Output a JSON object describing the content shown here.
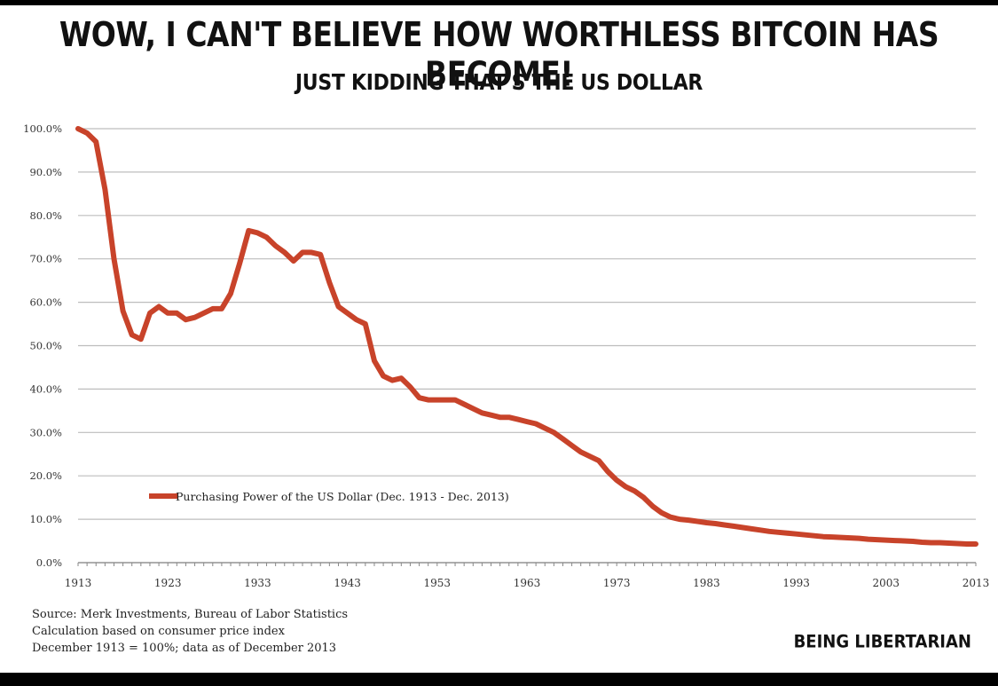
{
  "header": {
    "title": "WOW, I CAN'T BELIEVE HOW WORTHLESS BITCOIN HAS BECOME!",
    "subtitle": "JUST KIDDING THAT'S THE US DOLLAR"
  },
  "footer": {
    "source_lines": [
      "Source: Merk Investments, Bureau of Labor Statistics",
      "Calculation based on consumer price index",
      "December 1913 = 100%; data as of December 2013"
    ],
    "brand": "BEING LIBERTARIAN"
  },
  "colors": {
    "line": "#c8432a",
    "grid": "#bdbdbd",
    "axis_text": "#333333"
  },
  "chart_data": {
    "type": "line",
    "title": "",
    "xlabel": "",
    "ylabel": "",
    "grid": true,
    "legend_position": "lower-left",
    "xlim": [
      1913,
      2013
    ],
    "ylim": [
      0,
      100
    ],
    "x_ticks": [
      1913,
      1923,
      1933,
      1943,
      1953,
      1963,
      1973,
      1983,
      1993,
      2003,
      2013
    ],
    "y_ticks": [
      "0.0%",
      "10.0%",
      "20.0%",
      "30.0%",
      "40.0%",
      "50.0%",
      "60.0%",
      "70.0%",
      "80.0%",
      "90.0%",
      "100.0%"
    ],
    "series": [
      {
        "name": "Purchasing Power of the US Dollar (Dec. 1913 - Dec. 2013)",
        "x": [
          1913,
          1914,
          1915,
          1916,
          1917,
          1918,
          1919,
          1920,
          1921,
          1922,
          1923,
          1924,
          1925,
          1926,
          1927,
          1928,
          1929,
          1930,
          1931,
          1932,
          1933,
          1934,
          1935,
          1936,
          1937,
          1938,
          1939,
          1940,
          1941,
          1942,
          1943,
          1944,
          1945,
          1946,
          1947,
          1948,
          1949,
          1950,
          1951,
          1952,
          1953,
          1954,
          1955,
          1956,
          1957,
          1958,
          1959,
          1960,
          1961,
          1962,
          1963,
          1964,
          1965,
          1966,
          1967,
          1968,
          1969,
          1970,
          1971,
          1972,
          1973,
          1974,
          1975,
          1976,
          1977,
          1978,
          1979,
          1980,
          1981,
          1982,
          1983,
          1984,
          1985,
          1986,
          1987,
          1988,
          1989,
          1990,
          1991,
          1992,
          1993,
          1994,
          1995,
          1996,
          1997,
          1998,
          1999,
          2000,
          2001,
          2002,
          2003,
          2004,
          2005,
          2006,
          2007,
          2008,
          2009,
          2010,
          2011,
          2012,
          2013
        ],
        "values": [
          100,
          99,
          97,
          86,
          70,
          58,
          52.5,
          51.5,
          57.5,
          59,
          57.5,
          57.5,
          56,
          56.5,
          57.5,
          58.5,
          58.5,
          62,
          69,
          76.5,
          76,
          75,
          73,
          71.5,
          69.5,
          71.5,
          71.5,
          71,
          64.5,
          59,
          57.5,
          56,
          55,
          46.5,
          43,
          42,
          42.5,
          40.5,
          38,
          37.5,
          37.5,
          37.5,
          37.5,
          36.5,
          35.5,
          34.5,
          34,
          33.5,
          33.5,
          33,
          32.5,
          32,
          31,
          30,
          28.5,
          27,
          25.5,
          24.5,
          23.5,
          21,
          19,
          17.5,
          16.5,
          15,
          13,
          11.5,
          10.5,
          10,
          9.8,
          9.5,
          9.2,
          9,
          8.7,
          8.4,
          8.1,
          7.8,
          7.5,
          7.2,
          7.0,
          6.8,
          6.6,
          6.4,
          6.2,
          6.0,
          5.9,
          5.8,
          5.7,
          5.6,
          5.4,
          5.3,
          5.2,
          5.1,
          5.0,
          4.9,
          4.7,
          4.6,
          4.6,
          4.5,
          4.4,
          4.3,
          4.3
        ]
      }
    ]
  }
}
